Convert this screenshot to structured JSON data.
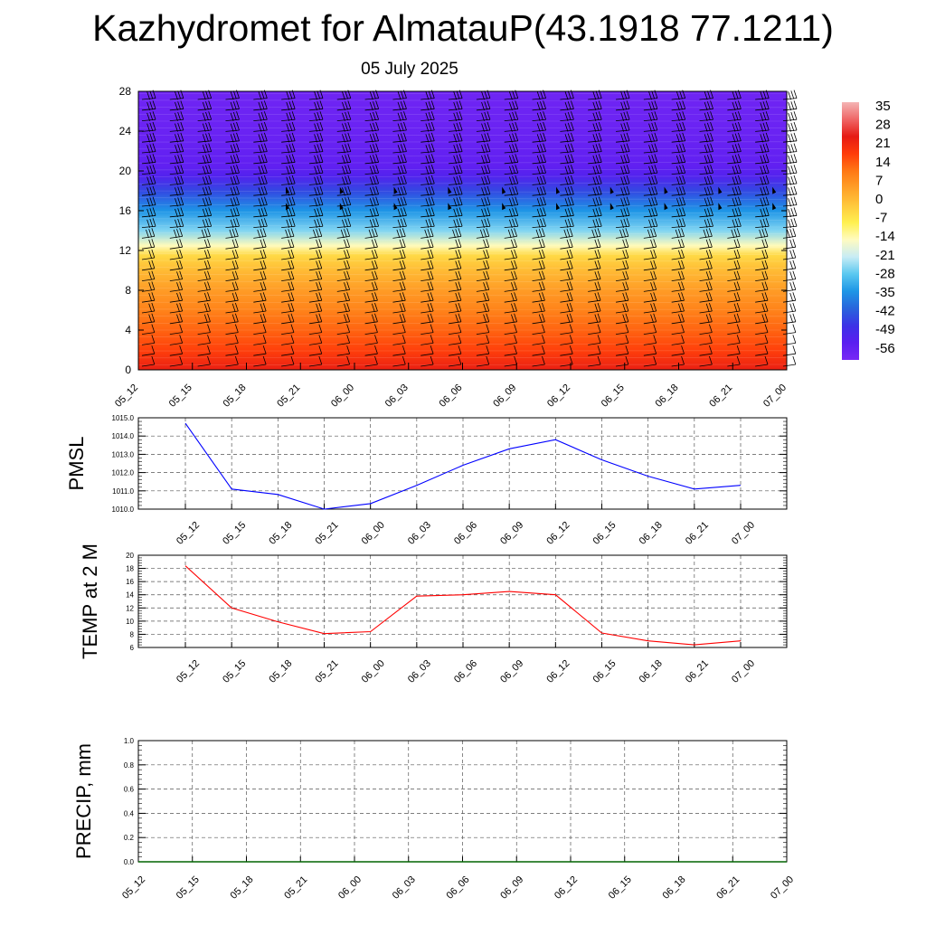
{
  "title": "Kazhydromet for AlmatauP(43.1918 77.1211)",
  "subtitle": "05 July 2025",
  "time_labels": [
    "05_12",
    "05_15",
    "05_18",
    "05_21",
    "06_00",
    "06_03",
    "06_06",
    "06_09",
    "06_12",
    "06_15",
    "06_18",
    "06_21",
    "07_00"
  ],
  "colors": {
    "pmsl_line": "#0000ff",
    "temp_line": "#ff0000",
    "precip_line": "#006400"
  },
  "chart_data": [
    {
      "type": "heatmap",
      "name": "vertical-section",
      "x": [
        "05_12",
        "05_15",
        "05_18",
        "05_21",
        "06_00",
        "06_03",
        "06_06",
        "06_09",
        "06_12",
        "06_15",
        "06_18",
        "06_21",
        "07_00"
      ],
      "y_ticks": [
        0,
        4,
        8,
        12,
        16,
        20,
        24,
        28
      ],
      "ylim": [
        0,
        28
      ],
      "colorbar": {
        "labels": [
          "35",
          "28",
          "21",
          "14",
          "7",
          "0",
          "-7",
          "-14",
          "-21",
          "-28",
          "-35",
          "-42",
          "-49",
          "-56"
        ],
        "colors": [
          "#f4b4b4",
          "#ef6666",
          "#e61a14",
          "#ff3c0a",
          "#ff7814",
          "#ffa028",
          "#ffc83c",
          "#fff050",
          "#fffbc0",
          "#c8ecf5",
          "#5ac8f0",
          "#1e96e6",
          "#2864dc",
          "#3c32e6",
          "#5a1ef0",
          "#7828f5"
        ]
      },
      "field_profile": [
        {
          "y": 0,
          "value": 24
        },
        {
          "y": 2,
          "value": 18
        },
        {
          "y": 4,
          "value": 14
        },
        {
          "y": 6,
          "value": 10
        },
        {
          "y": 8,
          "value": 6
        },
        {
          "y": 10,
          "value": 1
        },
        {
          "y": 11.5,
          "value": -4
        },
        {
          "y": 12.5,
          "value": -14
        },
        {
          "y": 14,
          "value": -25
        },
        {
          "y": 16,
          "value": -34
        },
        {
          "y": 18,
          "value": -44
        },
        {
          "y": 19.5,
          "value": -52
        },
        {
          "y": 20.5,
          "value": -55
        },
        {
          "y": 24,
          "value": -57
        },
        {
          "y": 28,
          "value": -58
        }
      ],
      "wind_barbs": true
    },
    {
      "type": "line",
      "name": "pmsl",
      "ylabel": "PMSL",
      "x": [
        "05_12",
        "05_15",
        "05_18",
        "05_21",
        "06_00",
        "06_03",
        "06_06",
        "06_09",
        "06_12",
        "06_15",
        "06_18",
        "06_21",
        "07_00"
      ],
      "series": [
        {
          "values": [
            1014.7,
            1011.1,
            1010.8,
            1010.0,
            1010.3,
            1011.3,
            1012.4,
            1013.3,
            1013.8,
            1012.7,
            1011.8,
            1011.1,
            1011.3
          ]
        }
      ],
      "ylim": [
        1010.0,
        1015.0
      ],
      "y_ticks": [
        "1010.0",
        "1011.0",
        "1012.0",
        "1013.0",
        "1014.0",
        "1015.0"
      ],
      "grid": true
    },
    {
      "type": "line",
      "name": "temp2m",
      "ylabel": "TEMP at 2 M",
      "x": [
        "05_12",
        "05_15",
        "05_18",
        "05_21",
        "06_00",
        "06_03",
        "06_06",
        "06_09",
        "06_12",
        "06_15",
        "06_18",
        "06_21",
        "07_00"
      ],
      "series": [
        {
          "values": [
            18.4,
            12.0,
            9.9,
            8.1,
            8.4,
            13.8,
            14.0,
            14.5,
            14.0,
            8.2,
            7.0,
            6.4,
            7.0
          ]
        }
      ],
      "ylim": [
        6,
        20
      ],
      "y_ticks": [
        "6",
        "8",
        "10",
        "12",
        "14",
        "16",
        "18",
        "20"
      ],
      "grid": true
    },
    {
      "type": "line",
      "name": "precip",
      "ylabel": "PRECIP, mm",
      "x": [
        "05_12",
        "05_15",
        "05_18",
        "05_21",
        "06_00",
        "06_03",
        "06_06",
        "06_09",
        "06_12",
        "06_15",
        "06_18",
        "06_21",
        "07_00"
      ],
      "series": [
        {
          "values": [
            0,
            0,
            0,
            0,
            0,
            0,
            0,
            0,
            0,
            0,
            0,
            0,
            0
          ]
        }
      ],
      "ylim": [
        0,
        1
      ],
      "y_ticks": [
        "0.0",
        "0.2",
        "0.4",
        "0.6",
        "0.8",
        "1.0"
      ],
      "grid": true
    }
  ]
}
